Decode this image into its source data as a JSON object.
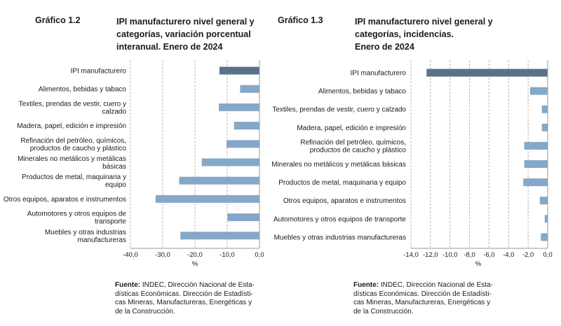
{
  "charts": [
    {
      "number": "Gráfico 1.2",
      "title_lines": [
        "IPI manufacturero nivel general y",
        "categorías, variación porcentual",
        "interanual. Enero de 2024"
      ],
      "source_label": "Fuente:",
      "source_lines": [
        " INDEC, Dirección Nacional de Esta-",
        "dísticas Económicas. Dirección de Estadísti-",
        "cas Mineras, Manufactureras, Energéticas y",
        "de la Construcción."
      ]
    },
    {
      "number": "Gráfico 1.3",
      "title_lines": [
        "IPI manufacturero nivel general y",
        "categorías, incidencias.",
        "Enero de 2024"
      ],
      "source_label": "Fuente:",
      "source_lines": [
        " INDEC, Dirección Nacional de Esta-",
        "dísticas Económicas. Dirección de Estadísti-",
        "cas Mineras, Manufactureras, Energéticas y",
        "de la Construcción."
      ]
    }
  ],
  "colors": {
    "highlight_bar": "#5a7189",
    "bar": "#86a8c8",
    "grid": "#b5b5b5",
    "axis": "#999999",
    "text": "#1a1a1a"
  },
  "chart_data": [
    {
      "type": "bar",
      "orientation": "horizontal",
      "title": "IPI manufacturero nivel general y categorías, variación porcentual interanual. Enero de 2024",
      "categories": [
        [
          "IPI manufacturero"
        ],
        [
          "Alimentos, bebidas y tabaco"
        ],
        [
          "Textiles, prendas de vestir, cuero y",
          "calzado"
        ],
        [
          "Madera, papel, edición e impresión"
        ],
        [
          "Refinación del petróleo, químicos,",
          "productos de caucho y plástico"
        ],
        [
          "Minerales no metálicos y metálicas",
          "básicas"
        ],
        [
          "Productos de metal, maquinaria y",
          "equipo"
        ],
        [
          "Otros equipos, aparatos e instrumentos"
        ],
        [
          "Automotores y otros equipos de",
          "transporte"
        ],
        [
          "Muebles y otras industrias",
          "manufactureras"
        ]
      ],
      "values": [
        -12.4,
        -6.0,
        -12.6,
        -7.9,
        -10.2,
        -17.9,
        -24.9,
        -32.2,
        -9.9,
        -24.5
      ],
      "xlim": [
        -40,
        0
      ],
      "xticks": [
        -40,
        -30,
        -20,
        -10,
        0
      ],
      "xtick_labels": [
        "-40,0",
        "-30,0",
        "-20,0",
        "-10,0",
        "0,0"
      ],
      "xlabel": "%",
      "grid": true
    },
    {
      "type": "bar",
      "orientation": "horizontal",
      "title": "IPI manufacturero nivel general y categorías, incidencias. Enero de 2024",
      "categories": [
        [
          "IPI manufacturero"
        ],
        [
          "Alimentos, bebidas y tabaco"
        ],
        [
          "Textiles, prendas de vestir, cuero y calzado"
        ],
        [
          "Madera, papel, edición e impresión"
        ],
        [
          "Refinación del petróleo, químicos,",
          "productos de caucho y plástico"
        ],
        [
          "Minerales no metálicos y metálicas básicas"
        ],
        [
          "Productos de metal, maquinaria y equipo"
        ],
        [
          "Otros equipos, aparatos e instrumentos"
        ],
        [
          "Automotores y otros equipos de transporte"
        ],
        [
          "Muebles y otras industrias manufactureras"
        ]
      ],
      "values": [
        -12.4,
        -1.8,
        -0.6,
        -0.6,
        -2.4,
        -2.4,
        -2.5,
        -0.8,
        -0.3,
        -0.7
      ],
      "xlim": [
        -14,
        0
      ],
      "xticks": [
        -14,
        -12,
        -10,
        -8,
        -6,
        -4,
        -2,
        0
      ],
      "xtick_labels": [
        "-14,0",
        "-12,0",
        "-10,0",
        "-8,0",
        "-6,0",
        "-4,0",
        "-2,0",
        "0,0"
      ],
      "xlabel": "%",
      "grid": true
    }
  ]
}
